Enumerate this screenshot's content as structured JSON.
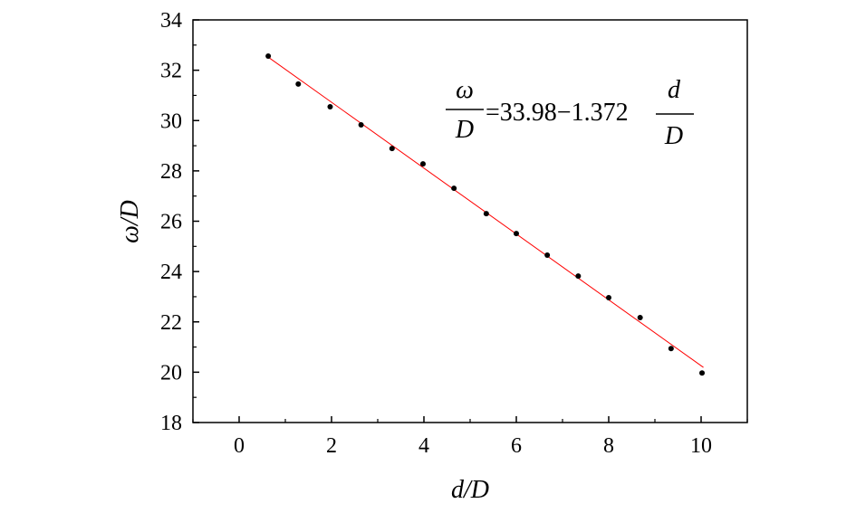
{
  "chart_data": {
    "type": "scatter",
    "xlabel": "d/D",
    "ylabel": "ω/D",
    "xlim": [
      -1,
      11
    ],
    "ylim": [
      18,
      34
    ],
    "xticks": [
      0,
      2,
      4,
      6,
      8,
      10
    ],
    "yticks": [
      18,
      20,
      22,
      24,
      26,
      28,
      30,
      32,
      34
    ],
    "grid": false,
    "points": {
      "x": [
        0.63,
        1.28,
        1.97,
        2.64,
        3.31,
        3.98,
        4.65,
        5.35,
        6.0,
        6.67,
        7.34,
        8.0,
        8.68,
        9.35,
        10.02
      ],
      "y": [
        32.56,
        31.45,
        30.55,
        29.83,
        28.89,
        28.28,
        27.31,
        26.3,
        25.51,
        24.65,
        23.82,
        22.96,
        22.17,
        20.94,
        19.97
      ]
    },
    "fit": {
      "intercept": 33.98,
      "slope": -1.372,
      "x_range": [
        0.6,
        10.05
      ],
      "color": "#ff0000",
      "equation": {
        "lhs_num": "ω",
        "lhs_den": "D",
        "mid": "=33.98−1.372",
        "rhs_num": "d",
        "rhs_den": "D"
      }
    },
    "marker_color": "#000000"
  }
}
